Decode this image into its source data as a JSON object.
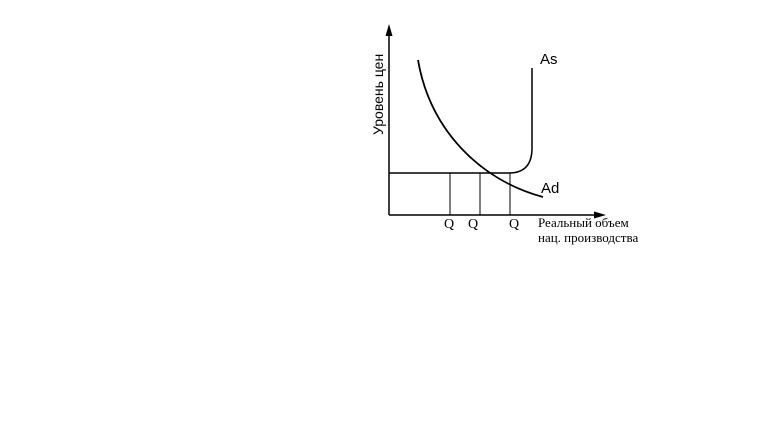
{
  "diagram": {
    "y_axis_label": "Уровень цен",
    "x_axis_label_line1": "Реальный объем",
    "x_axis_label_line2": "нац. производства",
    "curve_as_label": "As",
    "curve_ad_label": "Ad",
    "q_labels": [
      "Q",
      "Q",
      "Q"
    ],
    "colors": {
      "background": "#ffffff",
      "ink": "#000000"
    }
  }
}
